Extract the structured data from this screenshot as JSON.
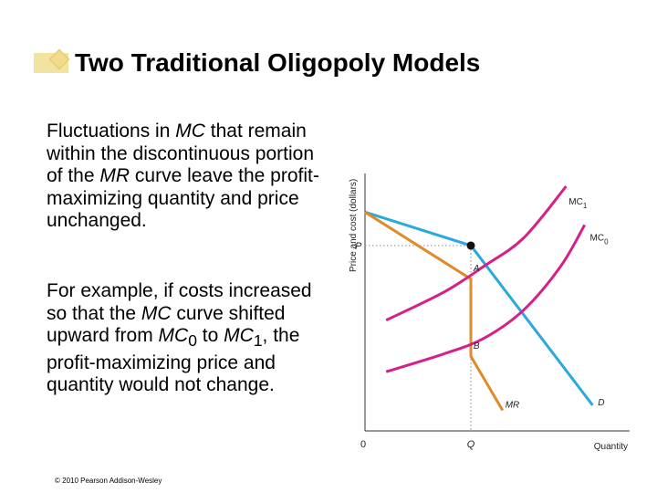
{
  "slide": {
    "title": "Two Traditional Oligopoly Models",
    "paragraph1": {
      "before_mc": "Fluctuations in ",
      "mc": "MC",
      "after_mc": " that remain within the discontinuous portion of the ",
      "mr": "MR",
      "after_mr": " curve leave the profit-maximizing quantity and price unchanged."
    },
    "paragraph2": {
      "before_mc": "For example, if costs increased so that the ",
      "mc": "MC",
      "middle1": " curve shifted upward from ",
      "mc0_base": "MC",
      "mc0_sub": "0",
      "middle2": " to ",
      "mc1_base": "MC",
      "mc1_sub": "1",
      "after": ", the profit-maximizing price and quantity would not change."
    },
    "copyright": "© 2010 Pearson Addison-Wesley"
  },
  "chart_data": {
    "type": "line",
    "title": "",
    "xlabel": "Quantity",
    "ylabel": "Price and cost (dollars)",
    "origin_label": "0",
    "xlim": [
      0,
      100
    ],
    "ylim": [
      0,
      100
    ],
    "ticks": {
      "x_label": "Q",
      "x_value": 40,
      "y_label": "P",
      "y_value": 72
    },
    "series": [
      {
        "name": "D",
        "color": "#29a9dc",
        "points": [
          [
            0,
            85
          ],
          [
            40,
            72
          ],
          [
            86,
            10
          ]
        ]
      },
      {
        "name": "MR",
        "color": "#e08a2a",
        "points": [
          [
            0,
            85
          ],
          [
            40,
            59
          ],
          [
            40,
            29
          ],
          [
            52,
            8
          ]
        ]
      },
      {
        "name": "MC1",
        "sub": "1",
        "color": "#d4218a",
        "points": [
          [
            8,
            43
          ],
          [
            30,
            54
          ],
          [
            45,
            64
          ],
          [
            60,
            75
          ],
          [
            76,
            95
          ]
        ]
      },
      {
        "name": "MC0",
        "sub": "0",
        "color": "#d4218a",
        "points": [
          [
            8,
            23
          ],
          [
            30,
            30
          ],
          [
            45,
            36
          ],
          [
            60,
            47
          ],
          [
            74,
            64
          ],
          [
            83,
            80
          ]
        ]
      }
    ],
    "points": [
      {
        "name": "equilibrium",
        "x": 40,
        "y": 72
      },
      {
        "name": "A",
        "x": 40,
        "y": 59
      },
      {
        "name": "B",
        "x": 40,
        "y": 29
      }
    ],
    "annotations": [
      {
        "text": "MC",
        "sub": "1",
        "x": 77,
        "y": 88,
        "italic": false
      },
      {
        "text": "MC",
        "sub": "0",
        "x": 85,
        "y": 74,
        "italic": false
      },
      {
        "text": "A",
        "x": 41,
        "y": 62,
        "italic": true
      },
      {
        "text": "B",
        "x": 41,
        "y": 32,
        "italic": true
      },
      {
        "text": "MR",
        "x": 53,
        "y": 9,
        "italic": true
      },
      {
        "text": "D",
        "x": 88,
        "y": 10,
        "italic": true
      }
    ]
  }
}
